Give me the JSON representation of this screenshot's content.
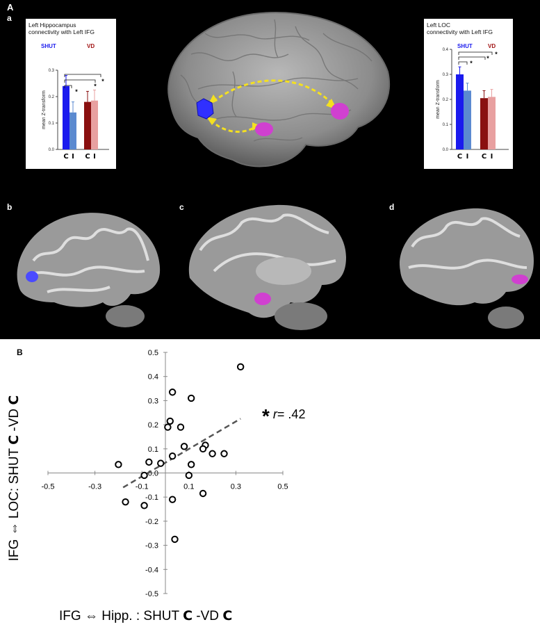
{
  "panel_labels": {
    "A": "A",
    "a": "a",
    "b": "b",
    "c": "c",
    "d": "d",
    "B": "B"
  },
  "colors": {
    "shut_c": "#1a1aee",
    "shut_i": "#5b8ad0",
    "vd_c": "#8a1010",
    "vd_i": "#e8a0a0",
    "shut_legend": "#1a1aee",
    "vd_legend": "#a01010",
    "arrow": "#f4e020",
    "roi_blue": "#3030ff",
    "roi_magenta": "#d040d0"
  },
  "chart_data": [
    {
      "type": "bar",
      "title": "Left Hippocampus\nconnectivity with Left IFG",
      "legend": [
        "SHUT",
        "VD"
      ],
      "categories": [
        "C",
        "I",
        "C",
        "I"
      ],
      "values": [
        0.24,
        0.14,
        0.18,
        0.185
      ],
      "errors": [
        0.04,
        0.04,
        0.04,
        0.04
      ],
      "ylabel": "mean Z-transform",
      "ylim": [
        0,
        0.3
      ],
      "yticks": [
        "0.0",
        "0.1",
        "0.2",
        "0.3"
      ],
      "significance": [
        "*",
        "*",
        "*"
      ]
    },
    {
      "type": "bar",
      "title": "Left LOC\nconnectivity with Left IFG",
      "legend": [
        "SHUT",
        "VD"
      ],
      "categories": [
        "C",
        "I",
        "C",
        "I"
      ],
      "values": [
        0.3,
        0.235,
        0.205,
        0.21
      ],
      "errors": [
        0.03,
        0.03,
        0.03,
        0.03
      ],
      "ylabel": "mean Z-transform",
      "ylim": [
        0,
        0.4
      ],
      "yticks": [
        "0.0",
        "0.1",
        "0.2",
        "0.3",
        "0.4"
      ],
      "significance": [
        "*",
        "*",
        "*"
      ]
    },
    {
      "type": "scatter",
      "xlim": [
        -0.5,
        0.5
      ],
      "ylim": [
        -0.5,
        0.5
      ],
      "xticks": [
        -0.5,
        -0.3,
        -0.1,
        0.1,
        0.3,
        0.5
      ],
      "yticks": [
        0.5,
        0.4,
        0.3,
        0.2,
        0.1,
        0.0,
        -0.1,
        -0.2,
        -0.3,
        -0.4,
        -0.5
      ],
      "xtick_labels": [
        "-0.5",
        "-0.3",
        "-0.1",
        "0.1",
        "0.3",
        "0.5"
      ],
      "ytick_labels": [
        "0.5",
        "0.4",
        "0.3",
        "0.2",
        "0.1",
        "0.0",
        "-0.1",
        "-0.2",
        "-0.3",
        "-0.4",
        "-0.5"
      ],
      "points": [
        [
          0.32,
          0.44
        ],
        [
          0.03,
          0.335
        ],
        [
          0.11,
          0.31
        ],
        [
          0.02,
          0.215
        ],
        [
          0.01,
          0.19
        ],
        [
          0.065,
          0.19
        ],
        [
          0.08,
          0.11
        ],
        [
          0.17,
          0.115
        ],
        [
          0.16,
          0.1
        ],
        [
          0.2,
          0.08
        ],
        [
          0.25,
          0.08
        ],
        [
          0.03,
          0.07
        ],
        [
          -0.2,
          0.035
        ],
        [
          -0.07,
          0.045
        ],
        [
          -0.02,
          0.04
        ],
        [
          0.11,
          0.035
        ],
        [
          -0.09,
          -0.01
        ],
        [
          0.1,
          -0.01
        ],
        [
          -0.17,
          -0.12
        ],
        [
          -0.09,
          -0.135
        ],
        [
          0.03,
          -0.11
        ],
        [
          0.16,
          -0.085
        ],
        [
          0.04,
          -0.275
        ]
      ],
      "fit": {
        "x": [
          -0.18,
          0.32
        ],
        "y": [
          -0.06,
          0.225
        ]
      }
    }
  ],
  "scatter_labels": {
    "ylabel_prefix": "IFG ⇔ LOC: SHUT ",
    "ylabel_bold1": "C",
    "ylabel_mid": " -VD ",
    "ylabel_bold2": "C",
    "xlabel_prefix": "IFG ⇔ Hipp. : SHUT ",
    "xlabel_bold1": "C",
    "xlabel_mid": " -VD ",
    "xlabel_bold2": "C",
    "star": "*",
    "r_italic": "r",
    "r_value": "= .42"
  }
}
